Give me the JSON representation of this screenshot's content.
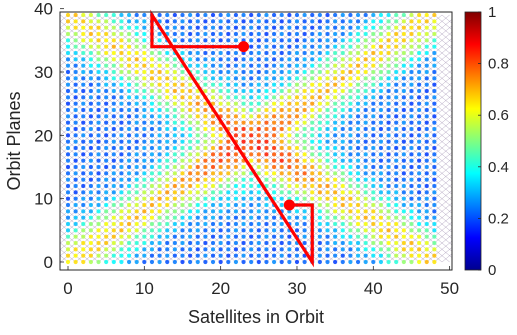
{
  "chart_data": {
    "type": "scatter",
    "title": "",
    "xlabel": "Satellites in Orbit",
    "ylabel": "Orbit Planes",
    "xlim": [
      -1,
      50
    ],
    "ylim": [
      -1,
      40
    ],
    "x_ticks": [
      0,
      10,
      20,
      30,
      40,
      50
    ],
    "y_ticks": [
      0,
      10,
      20,
      30,
      40
    ],
    "x_tick_labels": [
      "0",
      "10",
      "20",
      "30",
      "40",
      "50"
    ],
    "y_tick_labels": [
      "0",
      "10",
      "20",
      "30",
      "40"
    ],
    "grid": {
      "x_count": 49,
      "y_count": 40,
      "description": "satellite grid points colored by value; dense crossing link lines shown as X pattern"
    },
    "colorbar": {
      "colormap": "jet",
      "range": [
        0,
        1
      ],
      "ticks": [
        0,
        0.2,
        0.4,
        0.6,
        0.8,
        1
      ],
      "tick_labels": [
        "0",
        "0.2",
        "0.4",
        "0.6",
        "0.8",
        "1"
      ]
    },
    "route": {
      "color": "#ff0000",
      "points": [
        [
          23,
          34
        ],
        [
          11,
          34
        ],
        [
          11,
          39
        ],
        [
          32,
          0
        ],
        [
          32,
          9
        ],
        [
          29,
          9
        ]
      ],
      "start_marker": [
        23,
        34
      ],
      "end_marker": [
        29,
        9
      ]
    }
  }
}
